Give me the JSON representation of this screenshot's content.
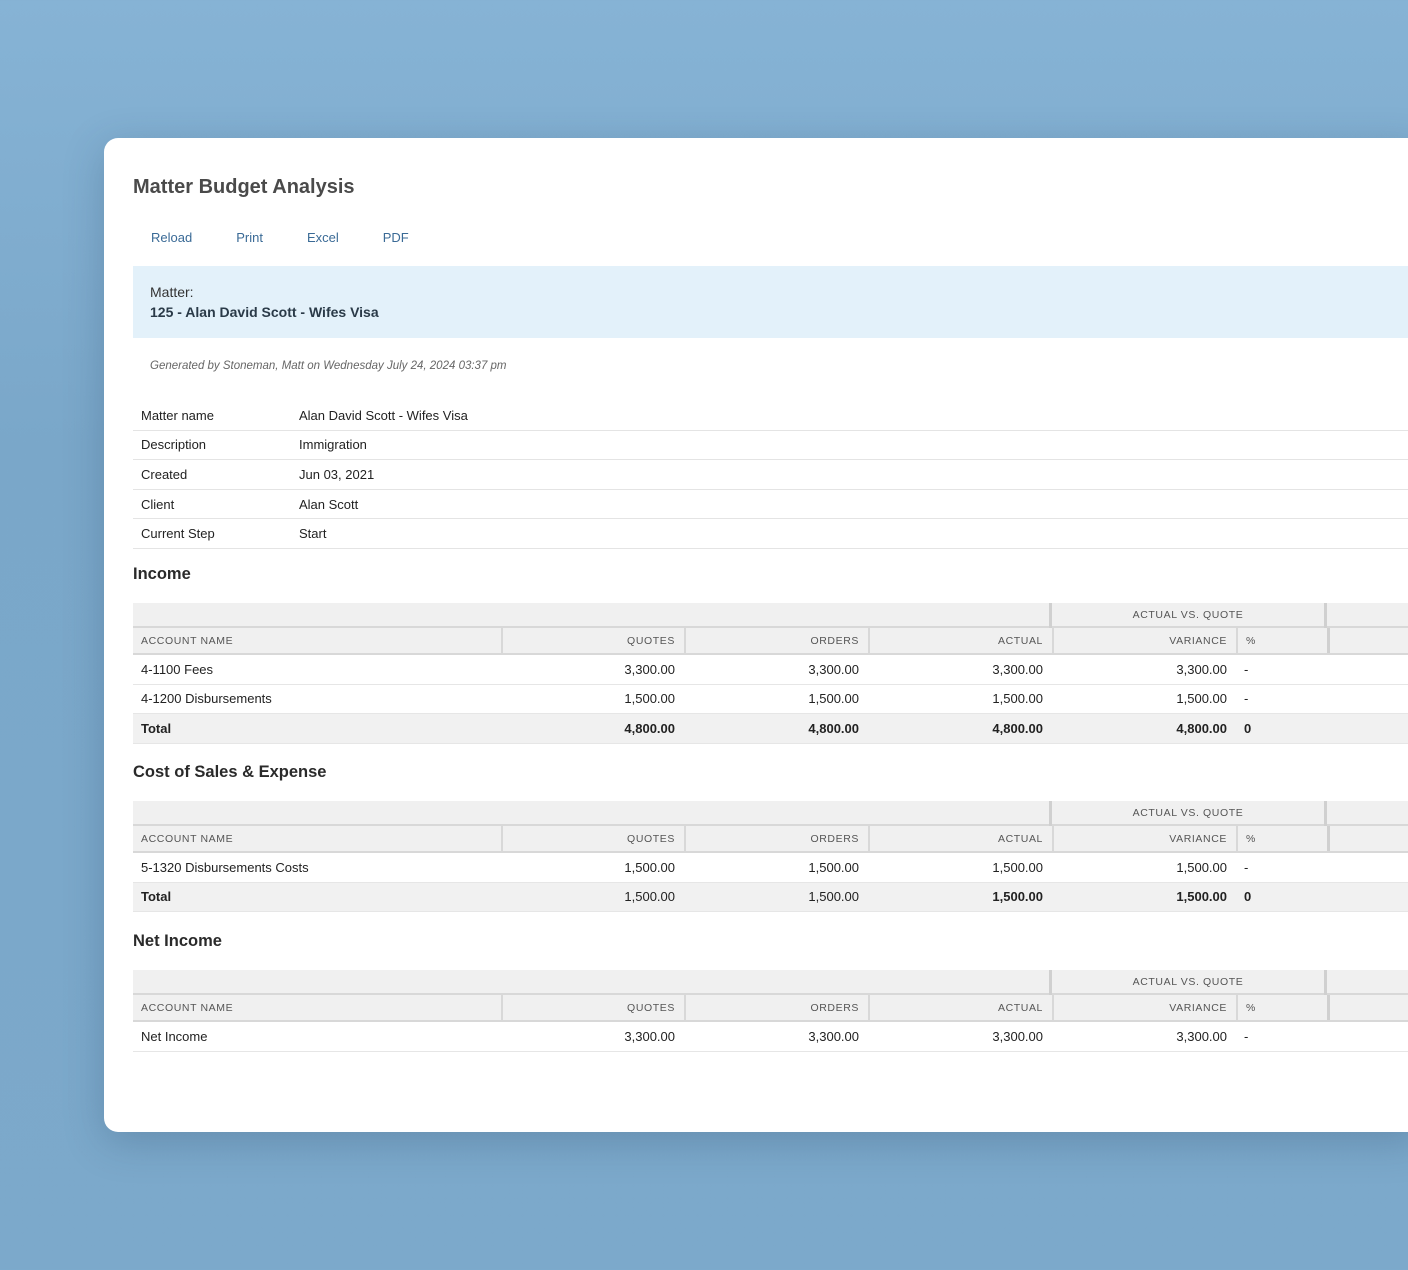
{
  "report": {
    "title": "Matter Budget Analysis",
    "toolbar": [
      "Reload",
      "Print",
      "Excel",
      "PDF"
    ],
    "matter_label": "Matter:",
    "matter_value": "125 - Alan David Scott - Wifes Visa",
    "generated": "Generated by Stoneman, Matt on Wednesday July 24, 2024 03:37 pm"
  },
  "info": [
    {
      "k": "Matter name",
      "v": "Alan David Scott - Wifes Visa"
    },
    {
      "k": "Description",
      "v": "Immigration"
    },
    {
      "k": "Created",
      "v": "Jun 03, 2021"
    },
    {
      "k": "Client",
      "v": "Alan Scott"
    },
    {
      "k": "Current Step",
      "v": "Start"
    }
  ],
  "headers": {
    "group": "ACTUAL VS. QUOTE",
    "account": "ACCOUNT NAME",
    "quotes": "QUOTES",
    "orders": "ORDERS",
    "actual": "ACTUAL",
    "variance": "VARIANCE",
    "pct": "%"
  },
  "income": {
    "title": "Income",
    "rows": [
      {
        "name": "4-1100 Fees",
        "quotes": "3,300.00",
        "orders": "3,300.00",
        "actual": "3,300.00",
        "variance": "3,300.00",
        "pct": "-"
      },
      {
        "name": "4-1200 Disbursements",
        "quotes": "1,500.00",
        "orders": "1,500.00",
        "actual": "1,500.00",
        "variance": "1,500.00",
        "pct": "-"
      }
    ],
    "total": {
      "name": "Total",
      "quotes": "4,800.00",
      "orders": "4,800.00",
      "actual": "4,800.00",
      "variance": "4,800.00",
      "pct": "0"
    }
  },
  "cost": {
    "title": "Cost of Sales & Expense",
    "rows": [
      {
        "name": "5-1320 Disbursements Costs",
        "quotes": "1,500.00",
        "orders": "1,500.00",
        "actual": "1,500.00",
        "variance": "1,500.00",
        "pct": "-"
      }
    ],
    "total": {
      "name": "Total",
      "quotes": "1,500.00",
      "orders": "1,500.00",
      "actual": "1,500.00",
      "variance": "1,500.00",
      "pct": "0"
    }
  },
  "net": {
    "title": "Net Income",
    "rows": [
      {
        "name": "Net Income",
        "quotes": "3,300.00",
        "orders": "3,300.00",
        "actual": "3,300.00",
        "variance": "3,300.00",
        "pct": "-"
      }
    ]
  }
}
